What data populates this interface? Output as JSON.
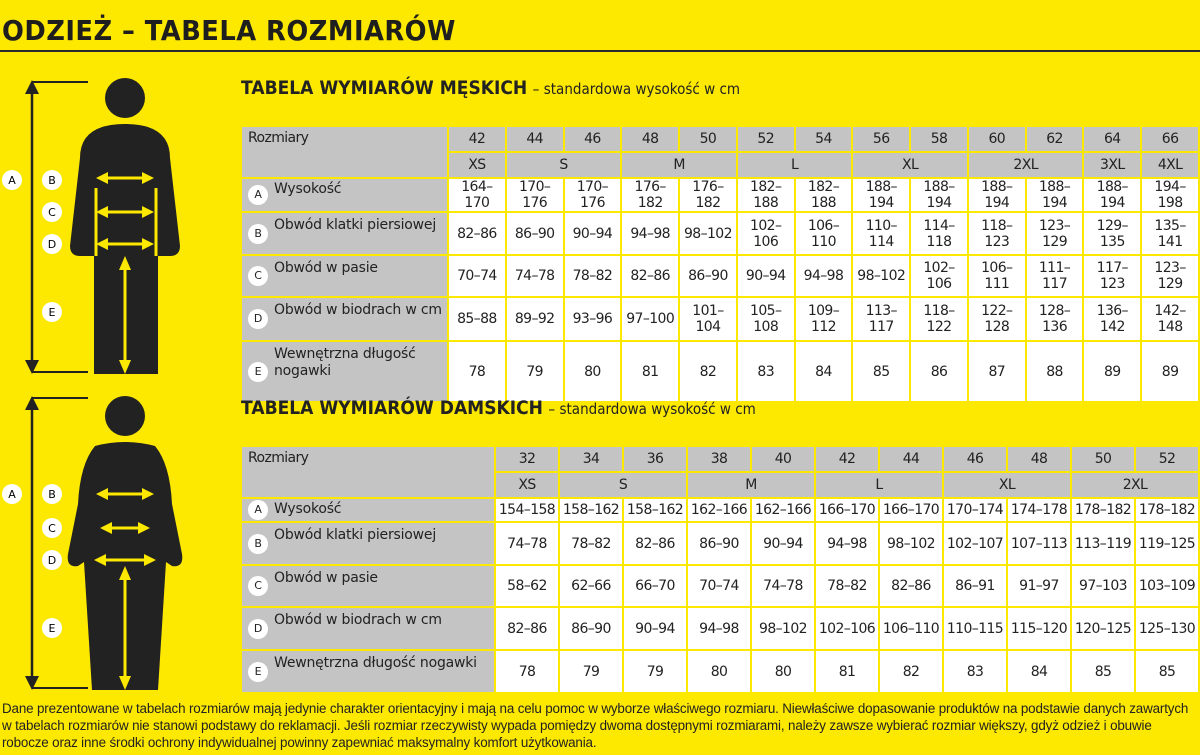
{
  "page_title": "ODZIEŻ – TABELA ROZMIARÓW",
  "colors": {
    "background": "#fde800",
    "header_cell": "#c4c4c4",
    "value_cell": "#ffffff",
    "figure": "#222222"
  },
  "figure_labels": [
    "A",
    "B",
    "C",
    "D",
    "E"
  ],
  "men": {
    "title": "TABELA WYMIARÓW MĘSKICH",
    "subtitle": "– standardowa wysokość w cm",
    "size_header": "Rozmiary",
    "sizes": [
      "42",
      "44",
      "46",
      "48",
      "50",
      "52",
      "54",
      "56",
      "58",
      "60",
      "62",
      "64",
      "66"
    ],
    "letter_sizes": [
      {
        "label": "XS",
        "span": 1
      },
      {
        "label": "S",
        "span": 2
      },
      {
        "label": "M",
        "span": 2
      },
      {
        "label": "L",
        "span": 2
      },
      {
        "label": "XL",
        "span": 2
      },
      {
        "label": "2XL",
        "span": 2
      },
      {
        "label": "3XL",
        "span": 1
      },
      {
        "label": "4XL",
        "span": 1
      }
    ],
    "rows": [
      {
        "key": "A",
        "label": "Wysokość",
        "values": [
          "164–170",
          "170–176",
          "170–176",
          "176–182",
          "176–182",
          "182–188",
          "182–188",
          "188–194",
          "188–194",
          "188–194",
          "188–194",
          "188–194",
          "194–198"
        ]
      },
      {
        "key": "B",
        "label": "Obwód klatki piersiowej",
        "values": [
          "82–86",
          "86–90",
          "90–94",
          "94–98",
          "98–102",
          "102–106",
          "106–110",
          "110–114",
          "114–118",
          "118–123",
          "123–129",
          "129–135",
          "135–141"
        ]
      },
      {
        "key": "C",
        "label": "Obwód w pasie",
        "values": [
          "70–74",
          "74–78",
          "78–82",
          "82–86",
          "86–90",
          "90–94",
          "94–98",
          "98–102",
          "102–106",
          "106–111",
          "111–117",
          "117–123",
          "123–129"
        ]
      },
      {
        "key": "D",
        "label": "Obwód w biodrach w cm",
        "values": [
          "85–88",
          "89–92",
          "93–96",
          "97–100",
          "101–104",
          "105–108",
          "109–112",
          "113–117",
          "118–122",
          "122–128",
          "128–136",
          "136–142",
          "142–148"
        ]
      },
      {
        "key": "E",
        "label": "Wewnętrzna długość nogawki",
        "values": [
          "78",
          "79",
          "80",
          "81",
          "82",
          "83",
          "84",
          "85",
          "86",
          "87",
          "88",
          "89",
          "89"
        ]
      }
    ]
  },
  "women": {
    "title": "TABELA WYMIARÓW DAMSKICH",
    "subtitle": "– standardowa wysokość w cm",
    "size_header": "Rozmiary",
    "sizes": [
      "32",
      "34",
      "36",
      "38",
      "40",
      "42",
      "44",
      "46",
      "48",
      "50",
      "52"
    ],
    "letter_sizes": [
      {
        "label": "XS",
        "span": 1
      },
      {
        "label": "S",
        "span": 2
      },
      {
        "label": "M",
        "span": 2
      },
      {
        "label": "L",
        "span": 2
      },
      {
        "label": "XL",
        "span": 2
      },
      {
        "label": "2XL",
        "span": 2
      }
    ],
    "rows": [
      {
        "key": "A",
        "label": "Wysokość",
        "values": [
          "154–158",
          "158–162",
          "158–162",
          "162–166",
          "162–166",
          "166–170",
          "166–170",
          "170–174",
          "174–178",
          "178–182",
          "178–182"
        ]
      },
      {
        "key": "B",
        "label": "Obwód klatki piersiowej",
        "values": [
          "74–78",
          "78–82",
          "82–86",
          "86–90",
          "90–94",
          "94–98",
          "98–102",
          "102–107",
          "107–113",
          "113–119",
          "119–125"
        ]
      },
      {
        "key": "C",
        "label": "Obwód w pasie",
        "values": [
          "58–62",
          "62–66",
          "66–70",
          "70–74",
          "74–78",
          "78–82",
          "82–86",
          "86–91",
          "91–97",
          "97–103",
          "103–109"
        ]
      },
      {
        "key": "D",
        "label": "Obwód w biodrach w cm",
        "values": [
          "82–86",
          "86–90",
          "90–94",
          "94–98",
          "98–102",
          "102–106",
          "106–110",
          "110–115",
          "115–120",
          "120–125",
          "125–130"
        ]
      },
      {
        "key": "E",
        "label": "Wewnętrzna długość nogawki",
        "values": [
          "78",
          "79",
          "79",
          "80",
          "80",
          "81",
          "82",
          "83",
          "84",
          "85",
          "85"
        ]
      }
    ]
  },
  "disclaimer": "Dane prezentowane w tabelach rozmiarów mają jedynie charakter orientacyjny i mają na celu pomoc w wyborze właściwego rozmiaru. Niewłaściwe dopasowanie produktów na podstawie danych zawartych w tabelach rozmiarów nie stanowi podstawy do reklamacji. Jeśli rozmiar rzeczywisty wypada pomiędzy dwoma dostępnymi rozmiarami, należy zawsze wybierać rozmiar większy, gdyż odzież i obuwie robocze oraz inne środki ochrony indywidualnej powinny zapewniać maksymalny komfort użytkowania."
}
